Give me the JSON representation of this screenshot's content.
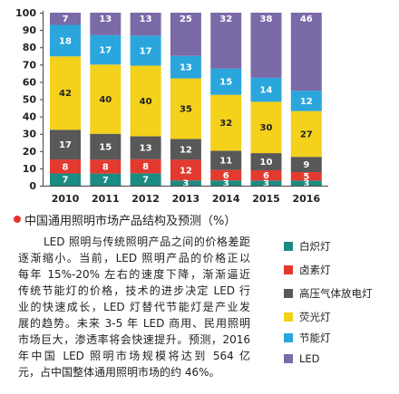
{
  "chart_data": {
    "type": "bar",
    "stacked": true,
    "title": "中国通用照明市场产品结构及预测（%）",
    "categories": [
      "2010",
      "2011",
      "2012",
      "2013",
      "2014",
      "2015",
      "2016"
    ],
    "series": [
      {
        "name": "白炽灯",
        "color": "#1b8c82",
        "values": [
          7,
          7,
          7,
          3,
          3,
          3,
          3
        ]
      },
      {
        "name": "卤素灯",
        "color": "#e33a30",
        "values": [
          8,
          8,
          8,
          12,
          6,
          6,
          5
        ]
      },
      {
        "name": "高压气体放电灯",
        "color": "#585858",
        "values": [
          17,
          15,
          13,
          12,
          11,
          10,
          9
        ]
      },
      {
        "name": "荧光灯",
        "color": "#f4d11b",
        "values": [
          42,
          40,
          40,
          35,
          32,
          30,
          27
        ]
      },
      {
        "name": "节能灯",
        "color": "#2aa6dd",
        "values": [
          18,
          17,
          17,
          13,
          15,
          14,
          12
        ]
      },
      {
        "name": "LED",
        "color": "#7a6aa8",
        "values": [
          7,
          13,
          13,
          25,
          32,
          38,
          46
        ]
      }
    ],
    "yticks": [
      0,
      10,
      20,
      30,
      40,
      50,
      60,
      70,
      80,
      90,
      100
    ],
    "ylim": [
      0,
      100
    ],
    "grid": false,
    "legend": "bottom-right"
  },
  "article": {
    "lines": [
      "LED 照明与传统照明产品之间的价格差距",
      "逐渐缩小。当前，LED 照明产品的价格正以",
      "每年 15%-20% 左右的速度下降，渐渐逼近",
      "传统节能灯的价格，技术的进步决定 LED 行",
      "业的快速成长，LED 灯替代节能灯是产业发",
      "展的趋势。未来 3-5 年 LED 商用、民用照明",
      "市场巨大，渗透率将会快速提升。预测，2016",
      "年中国 LED 照明市场规模将达到 564 亿",
      "元，占中国整体通用照明市场的约 46%。"
    ]
  }
}
